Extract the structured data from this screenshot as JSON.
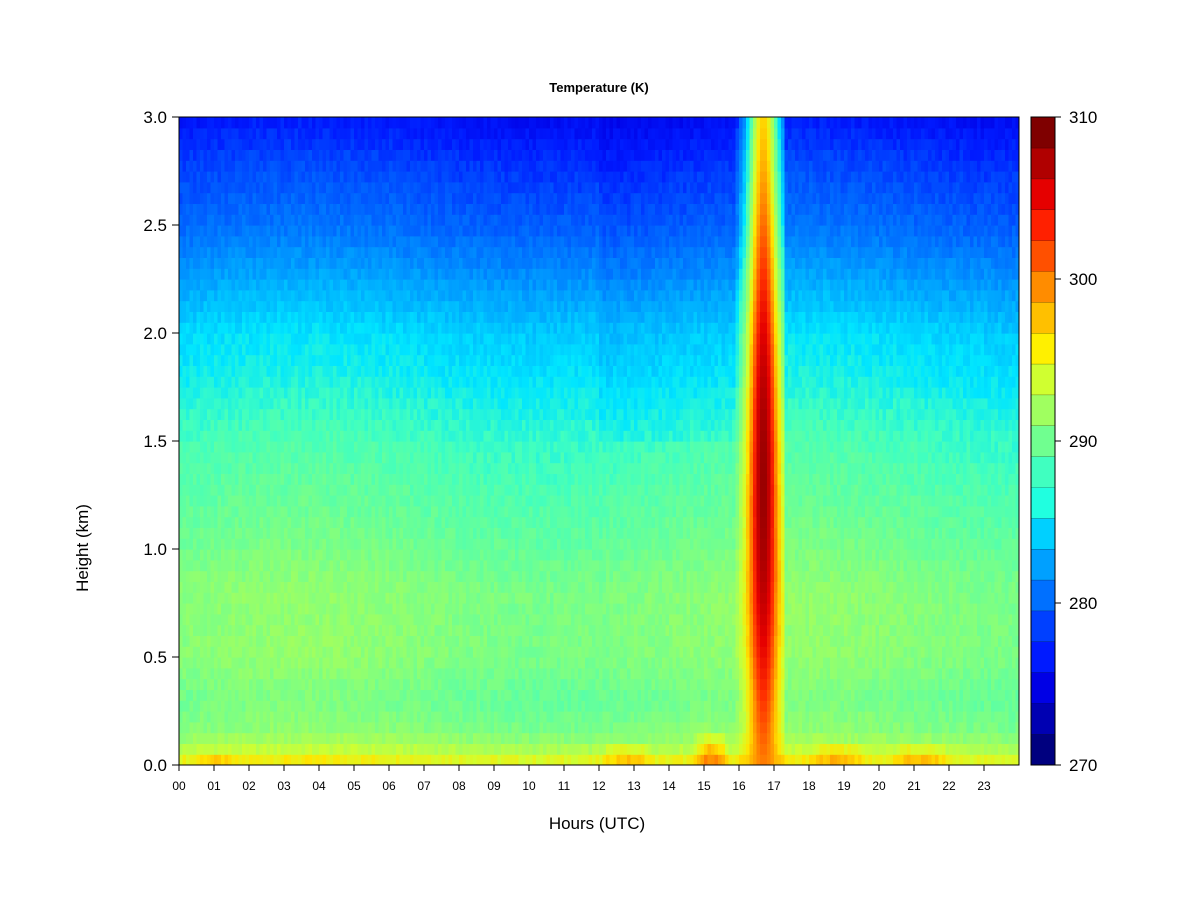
{
  "chart_data": {
    "type": "heatmap",
    "title": "Temperature (K)",
    "xlabel": "Hours (UTC)",
    "ylabel": "Height (km)",
    "xlim": [
      0,
      24
    ],
    "ylim": [
      0.0,
      3.0
    ],
    "x_tick_labels": [
      "00",
      "01",
      "02",
      "03",
      "04",
      "05",
      "06",
      "07",
      "08",
      "09",
      "10",
      "11",
      "12",
      "13",
      "14",
      "15",
      "16",
      "17",
      "18",
      "19",
      "20",
      "21",
      "22",
      "23"
    ],
    "y_ticks": [
      0.0,
      0.5,
      1.0,
      1.5,
      2.0,
      2.5,
      3.0
    ],
    "y_tick_labels": [
      "0.0",
      "0.5",
      "1.0",
      "1.5",
      "2.0",
      "2.5",
      "3.0"
    ],
    "colorbar": {
      "range": [
        270,
        310
      ],
      "levels": [
        270,
        272.5,
        275,
        277.5,
        280,
        282.5,
        285,
        287.5,
        290,
        292.5,
        295,
        297.5,
        300,
        302.5,
        305,
        307.5,
        310
      ],
      "tick_values": [
        270,
        280,
        290,
        300,
        310
      ],
      "tick_labels": [
        "270",
        "280",
        "290",
        "300",
        "310"
      ],
      "colors": [
        "#00007f",
        "#0000b2",
        "#0000e5",
        "#001aff",
        "#0050ff",
        "#0080ff",
        "#00b0ff",
        "#00e5ff",
        "#40ffc0",
        "#70ff90",
        "#a0ff60",
        "#d0ff30",
        "#ffe500",
        "#ffb000",
        "#ff7000",
        "#ff3000",
        "#e50000",
        "#b20000",
        "#7f0000"
      ],
      "band_colors": [
        "#00007f",
        "#0000b2",
        "#0000e5",
        "#001aff",
        "#0040ff",
        "#0070ff",
        "#00a0ff",
        "#00d0ff",
        "#20ffe0",
        "#40ffc0",
        "#70ff90",
        "#a0ff60",
        "#d0ff30",
        "#fff000",
        "#ffc000",
        "#ff8c00",
        "#ff5000",
        "#ff2000",
        "#e50000",
        "#b00000",
        "#7f0000"
      ]
    },
    "profile_heights_km": [
      0.0,
      0.05,
      0.15,
      0.3,
      0.5,
      0.8,
      1.0,
      1.5,
      1.8,
      2.0,
      2.3,
      2.5,
      2.8,
      3.0
    ],
    "background_profile_K": [
      297,
      294,
      291,
      290,
      291,
      291,
      290,
      288,
      286,
      285,
      282,
      280,
      278,
      276
    ],
    "surface_warm_episodes": [
      {
        "x": 1.0,
        "width_h": 1.2,
        "top_km": 0.08,
        "peak_K": 298
      },
      {
        "x": 12.8,
        "width_h": 1.6,
        "top_km": 0.12,
        "peak_K": 299
      },
      {
        "x": 15.2,
        "width_h": 1.0,
        "top_km": 0.18,
        "peak_K": 301
      },
      {
        "x": 18.8,
        "width_h": 1.6,
        "top_km": 0.12,
        "peak_K": 299
      },
      {
        "x": 21.2,
        "width_h": 1.8,
        "top_km": 0.12,
        "peak_K": 299
      }
    ],
    "warm_plume": {
      "x_start": 15.9,
      "x_end": 17.3,
      "core_x": 16.7,
      "core_top_km": 3.0,
      "peak_K": 309,
      "core_height_km": 1.3
    }
  }
}
